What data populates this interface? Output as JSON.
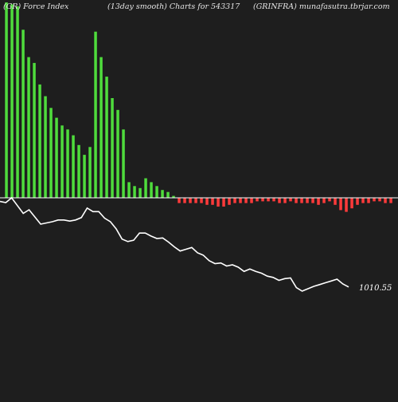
{
  "header": {
    "left": "(GR) Force  Index",
    "middle": "(13day smooth) Charts for 543317",
    "right": "(GRINFRA) munafasutra.tbrjar.com"
  },
  "colors": {
    "background": "#1e1e1e",
    "positive_bar": "#4fdc3c",
    "negative_bar": "#ff3a3a",
    "price_line": "#ffffff",
    "zero_line": "#ffffff"
  },
  "chart_data": {
    "type": "bar",
    "title": "",
    "series": [
      {
        "values": [
          100,
          99,
          98,
          86,
          72,
          69,
          58,
          52,
          46,
          41,
          37,
          35,
          32,
          27,
          22,
          26,
          85,
          72,
          62,
          51,
          45,
          35,
          8,
          6,
          5,
          10,
          8,
          6,
          4,
          3,
          1,
          -3,
          -3,
          -3,
          -3,
          -3,
          -4,
          -4,
          -5,
          -5,
          -4,
          -3,
          -3,
          -3,
          -3,
          -2,
          -2,
          -2,
          -2,
          -3,
          -3,
          -2,
          -3,
          -3,
          -3,
          -3,
          -4,
          -3,
          -2,
          -4,
          -7,
          -8,
          -6,
          -4,
          -3,
          -3,
          -2,
          -2,
          -3,
          -3
        ]
      },
      {
        "values": [
          1035.2,
          1035.0,
          1035.8,
          1034.5,
          1033.2,
          1033.8,
          1032.6,
          1031.4,
          1031.6,
          1031.8,
          1032.1,
          1032.1,
          1031.9,
          1032.1,
          1032.5,
          1034.1,
          1033.5,
          1033.5,
          1032.4,
          1031.8,
          1030.6,
          1028.9,
          1028.5,
          1028.7,
          1029.9,
          1029.9,
          1029.4,
          1029.0,
          1029.1,
          1028.4,
          1027.6,
          1026.9,
          1027.2,
          1027.5,
          1026.6,
          1026.2,
          1025.3,
          1024.8,
          1024.9,
          1024.4,
          1024.6,
          1024.2,
          1023.5,
          1023.9,
          1023.5,
          1023.2,
          1022.7,
          1022.5,
          1022.0,
          1022.3,
          1022.4,
          1020.8,
          1020.2,
          1020.6,
          1021.0,
          1021.3,
          1021.6,
          1021.9,
          1022.2,
          1021.4,
          1020.9
        ]
      }
    ],
    "last_price_label": "1010.55",
    "grid": false
  }
}
